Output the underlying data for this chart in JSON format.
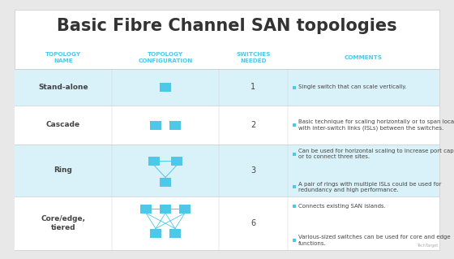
{
  "title": "Basic Fibre Channel SAN topologies",
  "title_fontsize": 15,
  "background_color": "#e8e8e8",
  "table_bg": "#ffffff",
  "header_text_color": "#4dc8e8",
  "row_colors": [
    "#d9f2f9",
    "#ffffff",
    "#d9f2f9",
    "#ffffff"
  ],
  "switch_color": "#4dc8e8",
  "line_color": "#4dc8e8",
  "col_headers": [
    "TOPOLOGY\nNAME",
    "TOPOLOGY\nCONFIGURATION",
    "SWITCHES\nNEEDED",
    "COMMENTS"
  ],
  "rows": [
    {
      "name": "Stand-alone",
      "switches": "1",
      "comments": [
        "Single switch that can scale vertically."
      ]
    },
    {
      "name": "Cascade",
      "switches": "2",
      "comments": [
        "Basic technique for scaling horizontally or to span locations\nwith inter-switch links (ISLs) between the switches."
      ]
    },
    {
      "name": "Ring",
      "switches": "3",
      "comments": [
        "Can be used for horizontal scaling to increase port capacity\nor to connect three sites.",
        "A pair of rings with multiple ISLs could be used for\nredundancy and high performance."
      ]
    },
    {
      "name": "Core/edge,\ntiered",
      "switches": "6",
      "comments": [
        "Connects existing SAN islands.",
        "Various-sized switches can be used for core and edge\nfunctions."
      ]
    }
  ],
  "name_text_color": "#444444",
  "comment_text_color": "#444444",
  "bullet_color": "#4dc8e8",
  "separator_color": "#cccccc",
  "watermark": "TechTarget"
}
